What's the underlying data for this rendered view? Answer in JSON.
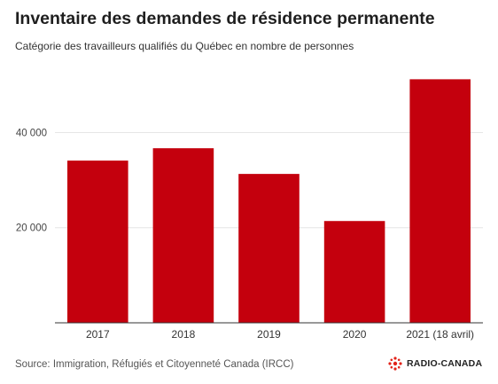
{
  "title": "Inventaire des demandes de résidence permanente",
  "subtitle": "Catégorie des travailleurs qualifiés du Québec en nombre de personnes",
  "source": "Source: Immigration, Réfugiés et Citoyenneté Canada (IRCC)",
  "logo_text": "RADIO-CANADA",
  "colors": {
    "bar": "#c4000d",
    "grid": "#e6e6e6",
    "axis": "#333333",
    "logo": "#e2231a"
  },
  "chart_data": {
    "type": "bar",
    "categories": [
      "2017",
      "2018",
      "2019",
      "2020",
      "2021 (18 avril)"
    ],
    "values": [
      34100,
      36700,
      31300,
      21400,
      51200
    ],
    "title": "Inventaire des demandes de résidence permanente",
    "subtitle": "Catégorie des travailleurs qualifiés du Québec en nombre de personnes",
    "xlabel": "",
    "ylabel": "",
    "ylim": [
      0,
      55000
    ],
    "yticks": [
      20000,
      40000
    ],
    "ytick_labels": [
      "20 000",
      "40 000"
    ],
    "grid": true,
    "legend": "none"
  }
}
